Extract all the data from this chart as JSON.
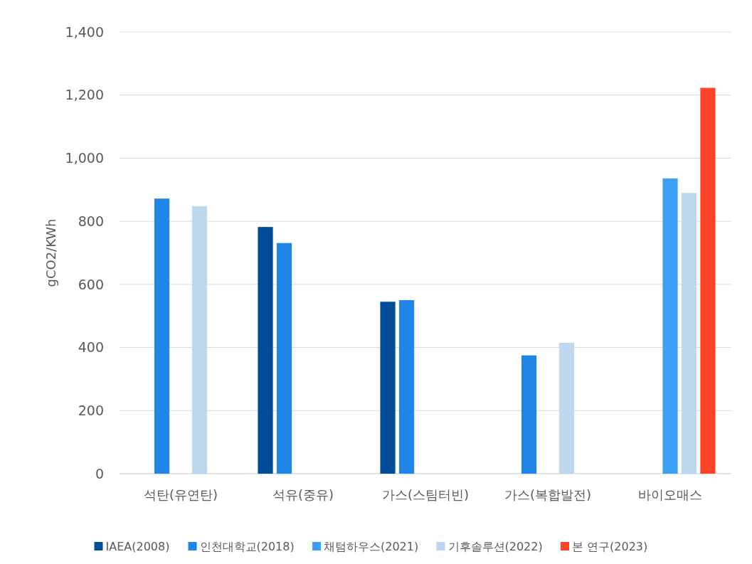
{
  "chart_data": {
    "type": "bar",
    "ylabel": "gCO2/KWh",
    "categories": [
      "석탄(유연탄)",
      "석유(중유)",
      "가스(스팀터빈)",
      "가스(복합발전)",
      "바이오매스"
    ],
    "series": [
      {
        "name": "IAEA(2008)",
        "color": "#004c97",
        "values": [
          null,
          782,
          545,
          null,
          null
        ]
      },
      {
        "name": "인천대학교(2018)",
        "color": "#1f86e8",
        "values": [
          872,
          731,
          550,
          375,
          null
        ]
      },
      {
        "name": "채텀하우스(2021)",
        "color": "#3d9ff5",
        "values": [
          null,
          null,
          null,
          null,
          936
        ]
      },
      {
        "name": "기후솔루션(2022)",
        "color": "#bdd7ee",
        "values": [
          848,
          null,
          null,
          415,
          890
        ]
      },
      {
        "name": "본 연구(2023)",
        "color": "#ff4328",
        "values": [
          null,
          null,
          null,
          null,
          1223
        ]
      }
    ],
    "ylim": [
      0,
      1400
    ],
    "yticks": [
      {
        "value": 0,
        "label": "0"
      },
      {
        "value": 200,
        "label": "200"
      },
      {
        "value": 400,
        "label": "400"
      },
      {
        "value": 600,
        "label": "600"
      },
      {
        "value": 800,
        "label": "800"
      },
      {
        "value": 1000,
        "label": "1,000"
      },
      {
        "value": 1200,
        "label": "1,200"
      },
      {
        "value": 1400,
        "label": "1,400"
      }
    ],
    "grid": "y",
    "legend": "bottom"
  }
}
